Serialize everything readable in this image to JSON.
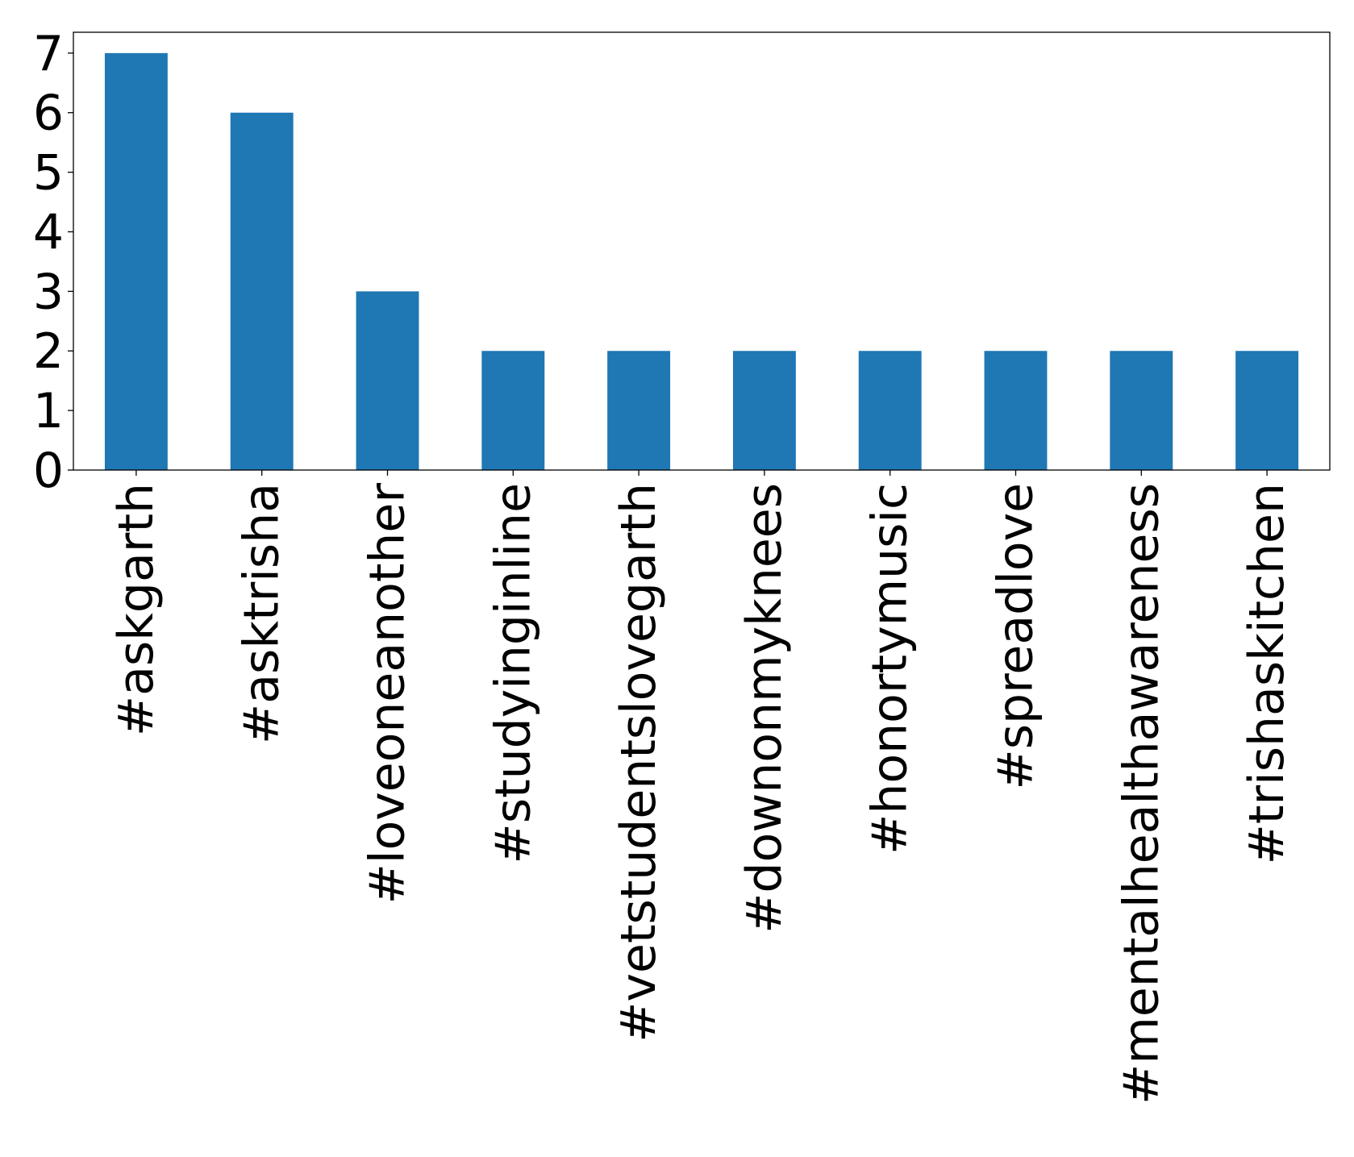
{
  "chart_data": {
    "type": "bar",
    "title": "",
    "xlabel": "",
    "ylabel": "",
    "categories": [
      "#askgarth",
      "#asktrisha",
      "#loveoneanother",
      "#studyinginline",
      "#vetstudentslovegarth",
      "#downonmyknees",
      "#honortymusic",
      "#spreadlove",
      "#mentalhealthawareness",
      "#trishaskitchen"
    ],
    "values": [
      7,
      6,
      3,
      2,
      2,
      2,
      2,
      2,
      2,
      2
    ],
    "ylim": [
      0,
      7.35
    ],
    "yticks": [
      0,
      1,
      2,
      3,
      4,
      5,
      6,
      7
    ],
    "grid": false,
    "legend": "none",
    "bar_color": "#1f77b4"
  }
}
